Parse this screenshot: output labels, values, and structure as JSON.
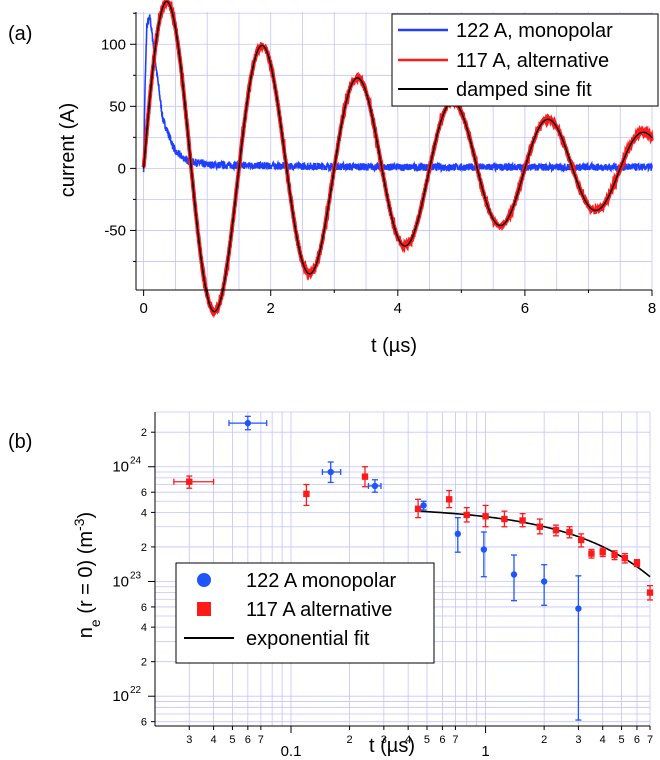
{
  "chart_data": [
    {
      "panel_label": "(a)",
      "type": "line",
      "xlabel": "t (µs)",
      "ylabel": "current (A)",
      "xlim": [
        -0.12,
        8.0
      ],
      "ylim": [
        -98,
        126
      ],
      "xticks": [
        0,
        2,
        4,
        6,
        8
      ],
      "yticks": [
        -50,
        0,
        50,
        100
      ],
      "grid": true,
      "legend_position": "top-right",
      "legend": [
        "122 A, monopolar",
        "117 A, alternative",
        "damped sine fit"
      ],
      "colors": {
        "monopolar": "#1f3fff",
        "alternative": "#ff1a1a",
        "fit": "#000000"
      },
      "series": [
        {
          "name": "122 A, monopolar",
          "model": "spike",
          "x": [
            0,
            0.02,
            0.05,
            0.1,
            0.2,
            0.3,
            0.5,
            0.7,
            1.0,
            2.0,
            4.0,
            6.0,
            8.0
          ],
          "y": [
            0,
            60,
            115,
            122,
            80,
            40,
            13,
            6,
            3,
            2,
            1,
            1,
            1
          ]
        },
        {
          "name": "117 A, alternative",
          "model": "damped sine",
          "amplitude": 145,
          "period_us": 1.5,
          "decay_us": 4.9,
          "x": [
            0.0,
            0.37,
            1.12,
            1.87,
            2.62,
            3.37,
            4.12,
            4.87,
            5.62,
            6.37,
            7.12,
            8.0
          ],
          "y": [
            0,
            117,
            -93,
            79,
            -63,
            53,
            -43,
            35,
            -29,
            24,
            -19,
            15
          ]
        },
        {
          "name": "damped sine fit",
          "model": "damped sine",
          "amplitude": 145,
          "period_us": 1.5,
          "decay_us": 4.9
        }
      ]
    },
    {
      "panel_label": "(b)",
      "type": "scatter",
      "xlabel": "t (µs)",
      "ylabel": "n_e (r = 0) (m^-3)",
      "ylabel_parts": {
        "main": "n",
        "sub": "e",
        "rest": " (r = 0) (m",
        "sup": "-3",
        "end": ")"
      },
      "xscale": "log",
      "yscale": "log",
      "xlim": [
        0.02,
        7
      ],
      "ylim": [
        5.5e+21,
        3e+24
      ],
      "xtick_labels": [
        {
          "v": 0.03,
          "t": "3"
        },
        {
          "v": 0.04,
          "t": "4"
        },
        {
          "v": 0.05,
          "t": "5"
        },
        {
          "v": 0.06,
          "t": "6"
        },
        {
          "v": 0.07,
          "t": "7"
        },
        {
          "v": 0.1,
          "t": "0.1",
          "major": true
        },
        {
          "v": 0.2,
          "t": "2"
        },
        {
          "v": 0.3,
          "t": "3"
        },
        {
          "v": 0.4,
          "t": "4"
        },
        {
          "v": 0.5,
          "t": "5"
        },
        {
          "v": 0.6,
          "t": "6"
        },
        {
          "v": 0.7,
          "t": "7"
        },
        {
          "v": 1,
          "t": "1",
          "major": true
        },
        {
          "v": 2,
          "t": "2"
        },
        {
          "v": 3,
          "t": "3"
        },
        {
          "v": 4,
          "t": "4"
        },
        {
          "v": 5,
          "t": "5"
        },
        {
          "v": 6,
          "t": "6"
        },
        {
          "v": 7,
          "t": "7"
        }
      ],
      "ytick_labels": [
        {
          "v": 6e+21,
          "t": "6"
        },
        {
          "v": 1e+22,
          "base": "10",
          "exp": "22",
          "major": true
        },
        {
          "v": 2e+22,
          "t": "2"
        },
        {
          "v": 4e+22,
          "t": "4"
        },
        {
          "v": 6e+22,
          "t": "6"
        },
        {
          "v": 1e+23,
          "base": "10",
          "exp": "23",
          "major": true
        },
        {
          "v": 2e+23,
          "t": "2"
        },
        {
          "v": 4e+23,
          "t": "4"
        },
        {
          "v": 6e+23,
          "t": "6"
        },
        {
          "v": 1e+24,
          "base": "10",
          "exp": "24",
          "major": true
        },
        {
          "v": 2e+24,
          "t": "2"
        }
      ],
      "grid": true,
      "legend_position": "bottom-left",
      "legend": [
        "122 A monopolar",
        "117 A alternative",
        "exponential fit"
      ],
      "colors": {
        "monopolar": "#1f55ff",
        "alternative": "#ff1a1a",
        "fit": "#000000"
      },
      "series": [
        {
          "name": "122 A monopolar",
          "marker": "circle",
          "points": [
            {
              "x": 0.06,
              "y": 2.4e+24,
              "xlo": 0.048,
              "xhi": 0.075,
              "ylo": 2.1e+24,
              "yhi": 2.75e+24
            },
            {
              "x": 0.16,
              "y": 9e+23,
              "xlo": 0.145,
              "xhi": 0.18,
              "ylo": 7.3e+23,
              "yhi": 1.1e+24
            },
            {
              "x": 0.27,
              "y": 6.8e+23,
              "xlo": 0.25,
              "xhi": 0.29,
              "ylo": 6e+23,
              "yhi": 7.7e+23
            },
            {
              "x": 0.48,
              "y": 4.6e+23,
              "ylo": 4.2e+23,
              "yhi": 5e+23
            },
            {
              "x": 0.72,
              "y": 2.6e+23,
              "ylo": 1.8e+23,
              "yhi": 3.6e+23
            },
            {
              "x": 0.98,
              "y": 1.9e+23,
              "ylo": 1.1e+23,
              "yhi": 2.7e+23
            },
            {
              "x": 1.4,
              "y": 1.15e+23,
              "ylo": 6.8e+22,
              "yhi": 1.7e+23
            },
            {
              "x": 2.0,
              "y": 1e+23,
              "ylo": 6.2e+22,
              "yhi": 1.4e+23
            },
            {
              "x": 3.0,
              "y": 5.8e+22,
              "ylo": 6.2e+21,
              "yhi": 1.12e+23
            }
          ]
        },
        {
          "name": "117 A alternative",
          "marker": "square",
          "points": [
            {
              "x": 0.03,
              "y": 7.4e+23,
              "xlo": 0.025,
              "xhi": 0.04,
              "ylo": 6.5e+23,
              "yhi": 8.3e+23
            },
            {
              "x": 0.12,
              "y": 5.8e+23,
              "ylo": 4.6e+23,
              "yhi": 7e+23
            },
            {
              "x": 0.24,
              "y": 8.2e+23,
              "ylo": 6.7e+23,
              "yhi": 1e+24
            },
            {
              "x": 0.45,
              "y": 4.3e+23,
              "ylo": 3.6e+23,
              "yhi": 5.2e+23
            },
            {
              "x": 0.65,
              "y": 5.2e+23,
              "ylo": 4.4e+23,
              "yhi": 6.2e+23
            },
            {
              "x": 0.8,
              "y": 3.8e+23,
              "ylo": 3.3e+23,
              "yhi": 4.4e+23
            },
            {
              "x": 1.0,
              "y": 3.7e+23,
              "ylo": 3e+23,
              "yhi": 4.6e+23
            },
            {
              "x": 1.25,
              "y": 3.5e+23,
              "ylo": 3e+23,
              "yhi": 4.1e+23
            },
            {
              "x": 1.55,
              "y": 3.4e+23,
              "ylo": 3e+23,
              "yhi": 3.9e+23
            },
            {
              "x": 1.9,
              "y": 3e+23,
              "ylo": 2.6e+23,
              "yhi": 3.5e+23
            },
            {
              "x": 2.3,
              "y": 2.8e+23,
              "ylo": 2.5e+23,
              "yhi": 3.1e+23
            },
            {
              "x": 2.7,
              "y": 2.7e+23,
              "ylo": 2.4e+23,
              "yhi": 3e+23
            },
            {
              "x": 3.1,
              "y": 2.3e+23,
              "ylo": 2e+23,
              "yhi": 2.6e+23
            },
            {
              "x": 3.5,
              "y": 1.75e+23,
              "ylo": 1.6e+23,
              "yhi": 1.9e+23
            },
            {
              "x": 4.0,
              "y": 1.8e+23,
              "ylo": 1.65e+23,
              "yhi": 1.95e+23
            },
            {
              "x": 4.6,
              "y": 1.7e+23,
              "ylo": 1.55e+23,
              "yhi": 1.85e+23
            },
            {
              "x": 5.2,
              "y": 1.6e+23,
              "ylo": 1.45e+23,
              "yhi": 1.75e+23
            },
            {
              "x": 6.0,
              "y": 1.45e+23,
              "ylo": 1.35e+23,
              "yhi": 1.55e+23
            },
            {
              "x": 7.0,
              "y": 8e+22,
              "ylo": 6.9e+22,
              "yhi": 9.2e+22
            }
          ]
        },
        {
          "name": "exponential fit",
          "model": "exponential",
          "x_range": [
            0.45,
            7.0
          ],
          "y_start": 4.1e+23,
          "y_end": 1.1e+23
        }
      ]
    }
  ]
}
